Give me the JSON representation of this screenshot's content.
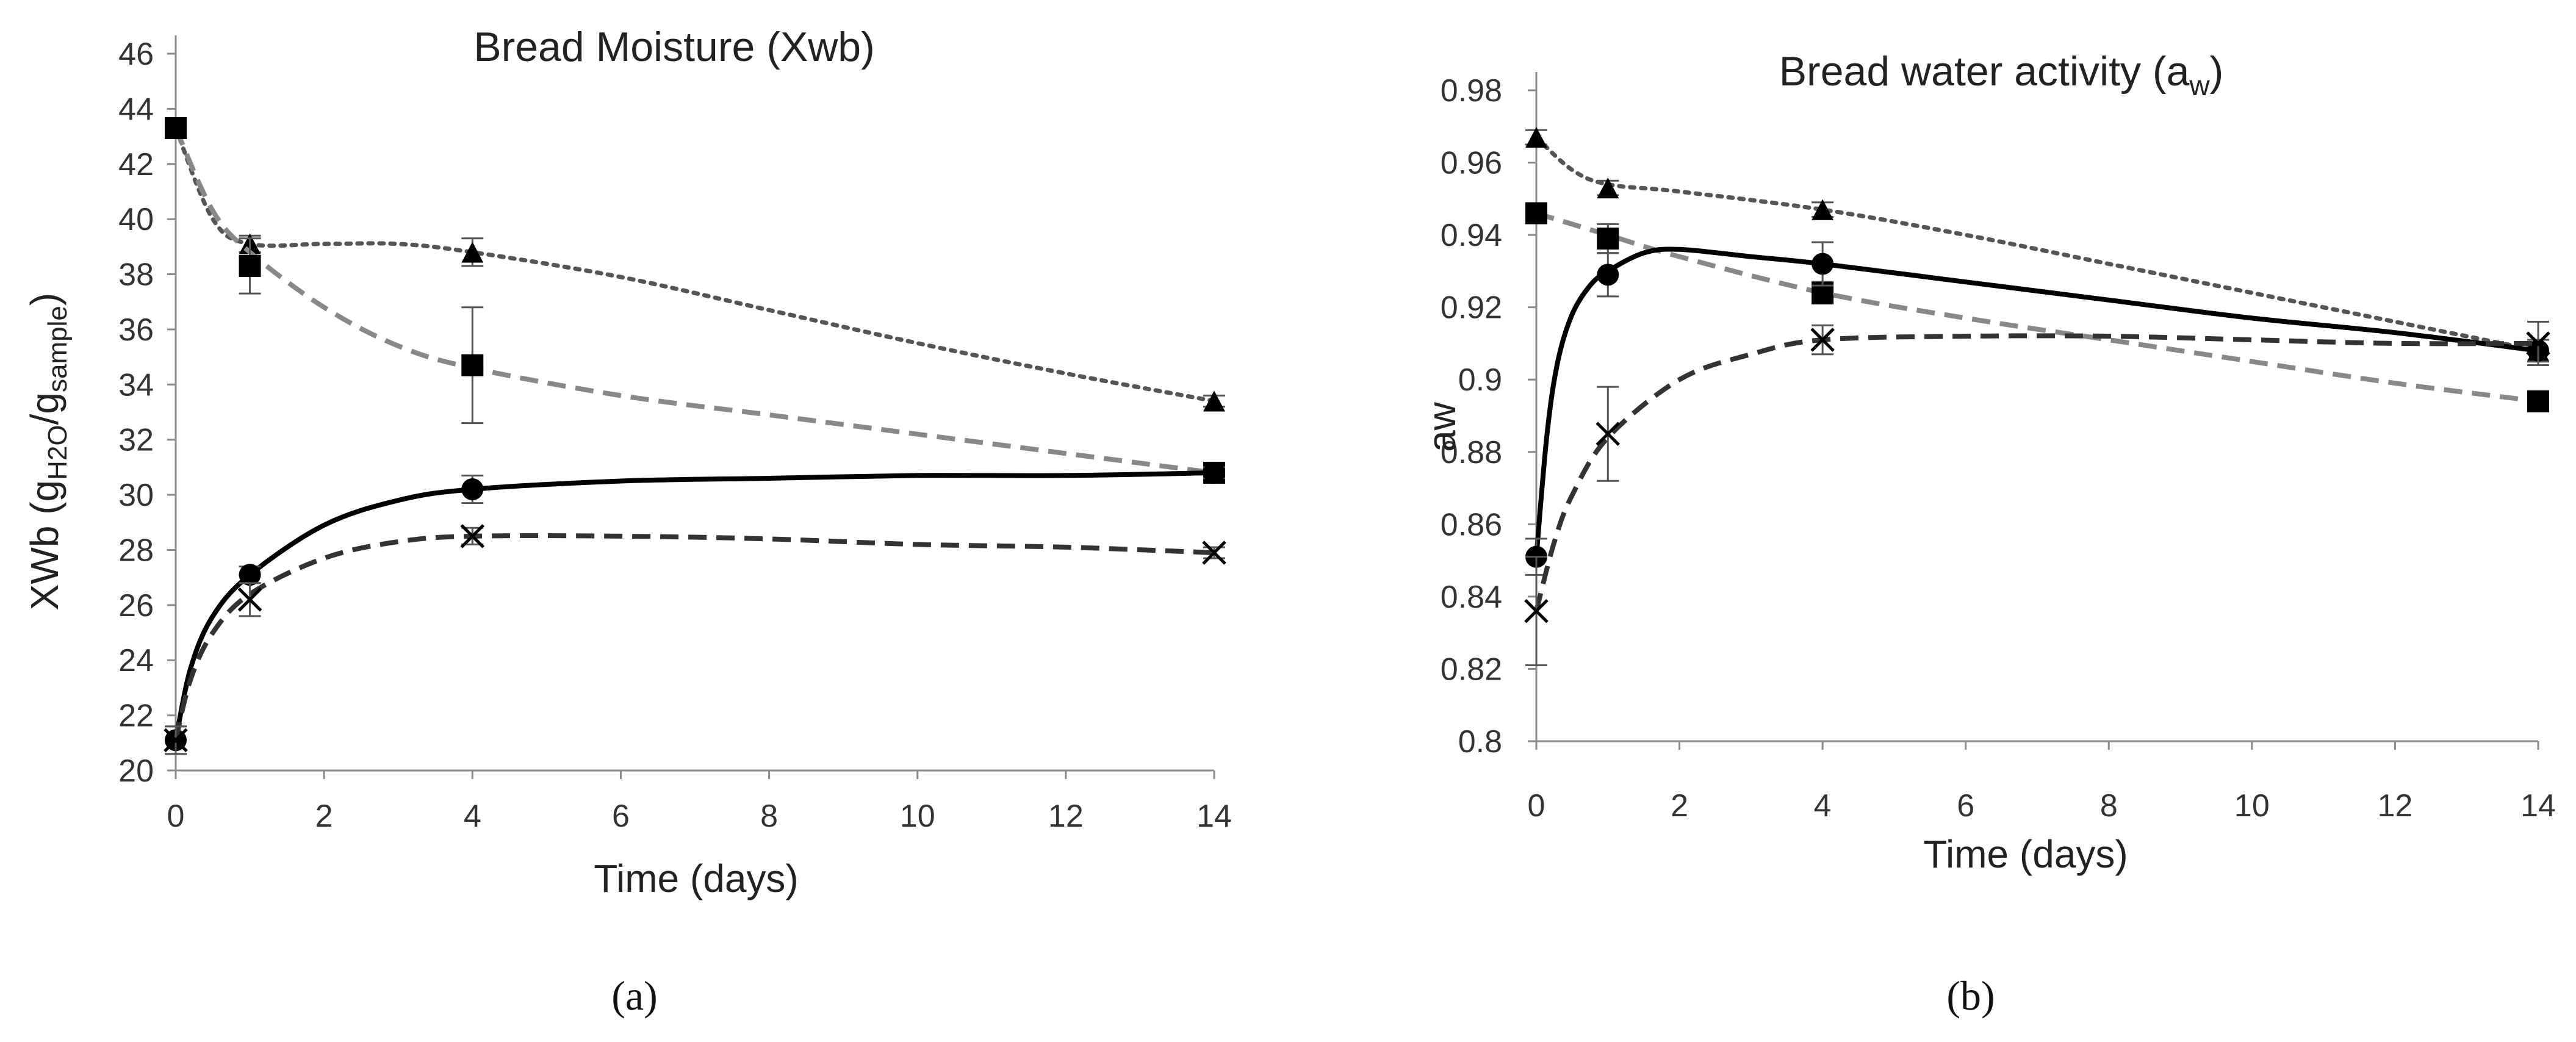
{
  "chart_data": [
    {
      "type": "line",
      "panel": "a",
      "title": "Bread Moisture (Xwb)",
      "xlabel": "Time (days)",
      "ylabel": {
        "base": "XWb (g",
        "sub1": "H2O",
        "mid": "/g",
        "sub2": "sample",
        "end": ")"
      },
      "xlim": [
        0,
        14
      ],
      "ylim": [
        20,
        46
      ],
      "xticks": [
        0,
        2,
        4,
        6,
        8,
        10,
        12,
        14
      ],
      "yticks": [
        20,
        22,
        24,
        26,
        28,
        30,
        32,
        34,
        36,
        38,
        40,
        42,
        44,
        46
      ],
      "series": [
        {
          "name": "triangle-dotted",
          "marker": "triangle",
          "color": "#555555",
          "line": "dotted",
          "x": [
            0,
            1,
            4,
            14
          ],
          "y": [
            43.3,
            39.1,
            38.8,
            33.4
          ],
          "err": [
            0.3,
            0.3,
            0.5,
            0.2
          ],
          "curve": [
            [
              0,
              43.3
            ],
            [
              0.5,
              40
            ],
            [
              1,
              39.1
            ],
            [
              2,
              39.1
            ],
            [
              3,
              39.1
            ],
            [
              4,
              38.8
            ],
            [
              6,
              37.9
            ],
            [
              8,
              36.7
            ],
            [
              10,
              35.5
            ],
            [
              12,
              34.4
            ],
            [
              14,
              33.4
            ]
          ]
        },
        {
          "name": "square-dashed",
          "marker": "square",
          "color": "#888888",
          "line": "dashed",
          "x": [
            0,
            1,
            4,
            14
          ],
          "y": [
            43.3,
            38.3,
            34.7,
            30.8
          ],
          "err": [
            0.3,
            1.0,
            2.1,
            0.2
          ],
          "curve": [
            [
              0,
              43.3
            ],
            [
              0.5,
              40.3
            ],
            [
              1,
              38.8
            ],
            [
              2,
              36.8
            ],
            [
              3,
              35.4
            ],
            [
              4,
              34.6
            ],
            [
              6,
              33.6
            ],
            [
              8,
              32.9
            ],
            [
              10,
              32.2
            ],
            [
              12,
              31.5
            ],
            [
              14,
              30.8
            ]
          ]
        },
        {
          "name": "circle-solid",
          "marker": "circle",
          "color": "#000000",
          "line": "solid",
          "x": [
            0,
            1,
            4,
            14
          ],
          "y": [
            21.1,
            27.1,
            30.2,
            30.8
          ],
          "err": [
            0.5,
            0.3,
            0.5,
            0.2
          ],
          "curve": [
            [
              0,
              21.1
            ],
            [
              0.2,
              23.7
            ],
            [
              0.5,
              25.6
            ],
            [
              1,
              27.1
            ],
            [
              2,
              28.9
            ],
            [
              3,
              29.8
            ],
            [
              4,
              30.2
            ],
            [
              6,
              30.5
            ],
            [
              8,
              30.6
            ],
            [
              10,
              30.7
            ],
            [
              12,
              30.7
            ],
            [
              14,
              30.8
            ]
          ]
        },
        {
          "name": "cross-dashed",
          "marker": "x",
          "color": "#333333",
          "line": "dashed",
          "x": [
            0,
            1,
            4,
            14
          ],
          "y": [
            21.1,
            26.2,
            28.5,
            27.9
          ],
          "err": [
            0.5,
            0.6,
            0.3,
            0.2
          ],
          "curve": [
            [
              0,
              21.1
            ],
            [
              0.2,
              23.3
            ],
            [
              0.5,
              25
            ],
            [
              1,
              26.4
            ],
            [
              2,
              27.7
            ],
            [
              3,
              28.3
            ],
            [
              4,
              28.5
            ],
            [
              6,
              28.5
            ],
            [
              8,
              28.4
            ],
            [
              10,
              28.2
            ],
            [
              12,
              28.1
            ],
            [
              14,
              27.9
            ]
          ]
        }
      ]
    },
    {
      "type": "line",
      "panel": "b",
      "title": "Bread water activity (a",
      "title_sub": "w",
      "title_end": ")",
      "xlabel": "Time (days)",
      "ylabel": "aw",
      "xlim": [
        0,
        14
      ],
      "ylim": [
        0.8,
        0.98
      ],
      "xticks": [
        0,
        2,
        4,
        6,
        8,
        10,
        12,
        14
      ],
      "yticks": [
        0.8,
        0.82,
        0.84,
        0.86,
        0.88,
        0.9,
        0.92,
        0.94,
        0.96,
        0.98
      ],
      "ytick_labels": [
        "0.8",
        "0.82",
        "0.84",
        "0.86",
        "0.88",
        "0.9",
        "0.92",
        "0.94",
        "0.96",
        "0.98"
      ],
      "series": [
        {
          "name": "triangle-dotted",
          "marker": "triangle",
          "color": "#555555",
          "line": "dotted",
          "x": [
            0,
            1,
            4,
            14
          ],
          "y": [
            0.967,
            0.953,
            0.947,
            0.908
          ],
          "err": [
            0.002,
            0.002,
            0.002,
            0.003
          ],
          "curve": [
            [
              0,
              0.967
            ],
            [
              0.5,
              0.958
            ],
            [
              1,
              0.954
            ],
            [
              2,
              0.952
            ],
            [
              4,
              0.947
            ],
            [
              6,
              0.94
            ],
            [
              8,
              0.932
            ],
            [
              10,
              0.924
            ],
            [
              12,
              0.916
            ],
            [
              14,
              0.908
            ]
          ]
        },
        {
          "name": "square-dashed",
          "marker": "square",
          "color": "#888888",
          "line": "dashed",
          "x": [
            0,
            1,
            4,
            14
          ],
          "y": [
            0.946,
            0.939,
            0.924,
            0.894
          ],
          "err": [
            0.002,
            0.004,
            0.003,
            0.002
          ],
          "curve": [
            [
              0,
              0.946
            ],
            [
              1,
              0.94
            ],
            [
              2,
              0.934
            ],
            [
              4,
              0.924
            ],
            [
              6,
              0.917
            ],
            [
              8,
              0.911
            ],
            [
              10,
              0.905
            ],
            [
              12,
              0.899
            ],
            [
              14,
              0.894
            ]
          ]
        },
        {
          "name": "circle-solid",
          "marker": "circle",
          "color": "#000000",
          "line": "solid",
          "x": [
            0,
            1,
            4,
            14
          ],
          "y": [
            0.851,
            0.929,
            0.932,
            0.908
          ],
          "err": [
            0.005,
            0.006,
            0.006,
            0.003
          ],
          "curve": [
            [
              0,
              0.851
            ],
            [
              0.15,
              0.885
            ],
            [
              0.3,
              0.905
            ],
            [
              0.5,
              0.918
            ],
            [
              0.75,
              0.926
            ],
            [
              1,
              0.93
            ],
            [
              1.5,
              0.935
            ],
            [
              2,
              0.936
            ],
            [
              3,
              0.934
            ],
            [
              4,
              0.932
            ],
            [
              6,
              0.927
            ],
            [
              8,
              0.922
            ],
            [
              10,
              0.917
            ],
            [
              12,
              0.913
            ],
            [
              14,
              0.908
            ]
          ]
        },
        {
          "name": "cross-dashed",
          "marker": "x",
          "color": "#333333",
          "line": "dashed",
          "x": [
            0,
            1,
            4,
            14
          ],
          "y": [
            0.836,
            0.885,
            0.911,
            0.91
          ],
          "err": [
            0.015,
            0.013,
            0.004,
            0.006
          ],
          "curve": [
            [
              0,
              0.836
            ],
            [
              0.25,
              0.855
            ],
            [
              0.5,
              0.868
            ],
            [
              1,
              0.884
            ],
            [
              2,
              0.9
            ],
            [
              3,
              0.907
            ],
            [
              4,
              0.911
            ],
            [
              6,
              0.912
            ],
            [
              8,
              0.912
            ],
            [
              10,
              0.911
            ],
            [
              12,
              0.91
            ],
            [
              14,
              0.91
            ]
          ]
        }
      ]
    }
  ],
  "panel_labels": [
    "(a)",
    "(b)"
  ]
}
